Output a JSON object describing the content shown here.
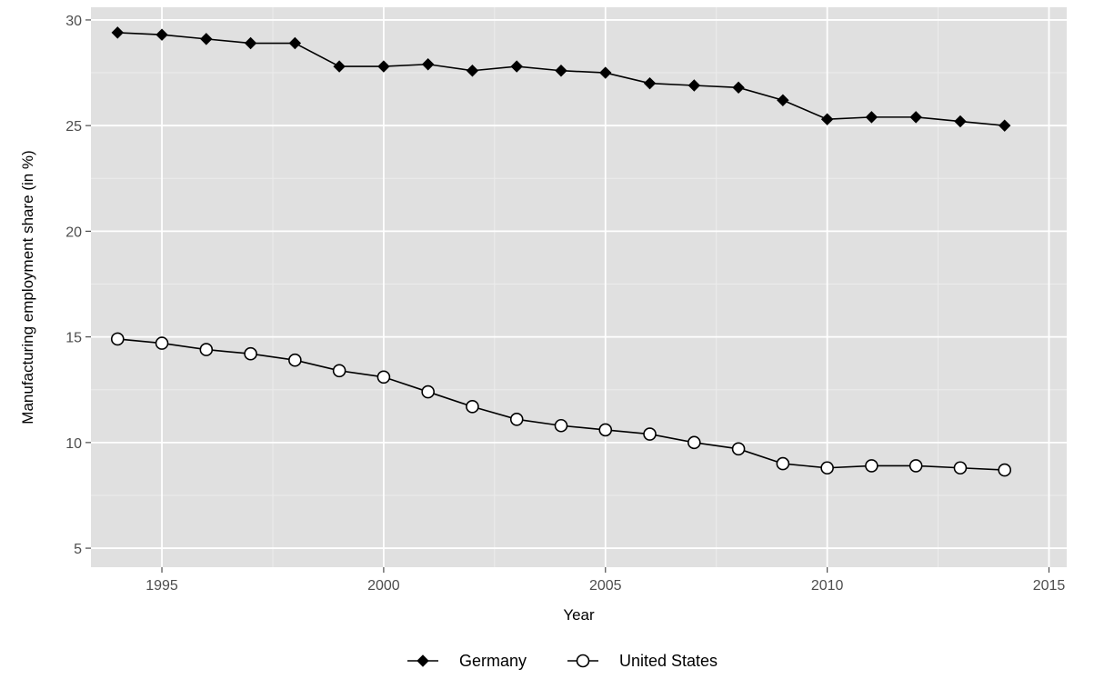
{
  "chart_data": {
    "type": "line",
    "title": "",
    "xlabel": "Year",
    "ylabel": "Manufacturing employment share (in %)",
    "xlim": [
      1993.4,
      2015.4
    ],
    "ylim": [
      4.1,
      30.6
    ],
    "x_ticks": [
      "1995",
      "2000",
      "2005",
      "2010",
      "2015"
    ],
    "y_ticks": [
      "5",
      "10",
      "15",
      "20",
      "25",
      "30"
    ],
    "grid": true,
    "legend_position": "bottom",
    "x": [
      1994,
      1995,
      1996,
      1997,
      1998,
      1999,
      2000,
      2001,
      2002,
      2003,
      2004,
      2005,
      2006,
      2007,
      2008,
      2009,
      2010,
      2011,
      2012,
      2013,
      2014
    ],
    "series": [
      {
        "name": "Germany",
        "marker": "filled-diamond",
        "values": [
          29.4,
          29.3,
          29.1,
          28.9,
          28.9,
          27.8,
          27.8,
          27.9,
          27.6,
          27.8,
          27.6,
          27.5,
          27.0,
          26.9,
          26.8,
          26.2,
          25.3,
          25.4,
          25.4,
          25.2,
          25.0
        ]
      },
      {
        "name": "United States",
        "marker": "open-circle",
        "values": [
          14.9,
          14.7,
          14.4,
          14.2,
          13.9,
          13.4,
          13.1,
          12.4,
          11.7,
          11.1,
          10.8,
          10.6,
          10.4,
          10.0,
          9.7,
          9.0,
          8.8,
          8.9,
          8.9,
          8.8,
          8.7
        ]
      }
    ],
    "colors": {
      "panel_background": "#e0e0e0",
      "gridline": "#ffffff",
      "line": "#000000",
      "marker_fill_open": "#ffffff"
    }
  }
}
